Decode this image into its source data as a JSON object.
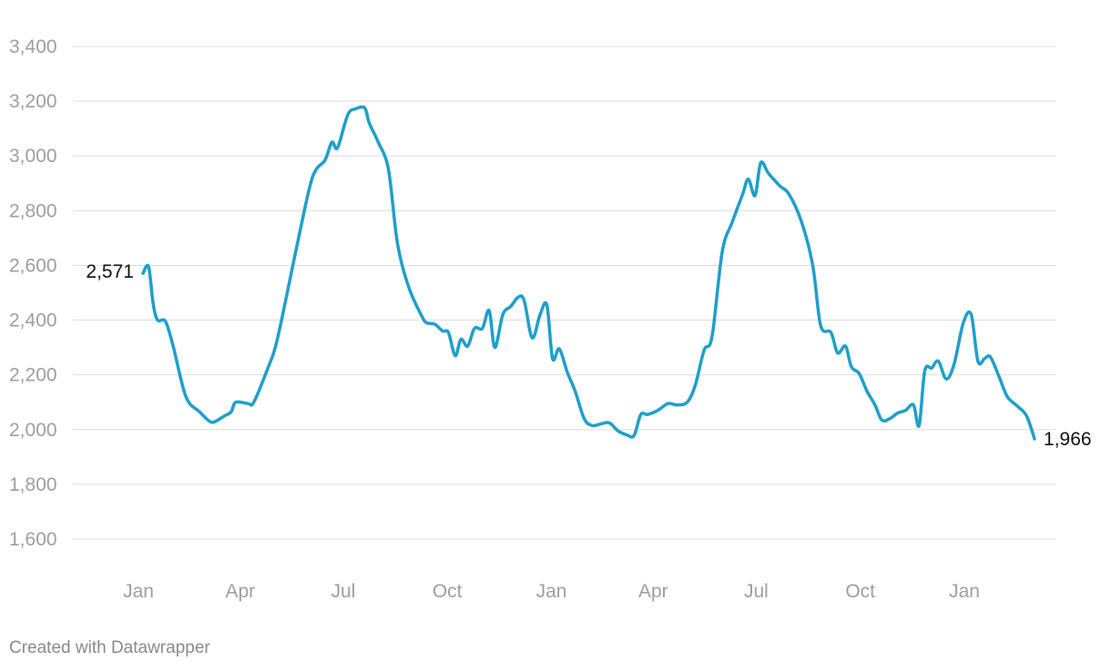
{
  "chart_data": {
    "type": "line",
    "title": "",
    "xlabel": "",
    "ylabel": "",
    "ylim": [
      1600,
      3400
    ],
    "y_ticks": [
      "1,600",
      "1,800",
      "2,000",
      "2,200",
      "2,400",
      "2,600",
      "2,800",
      "3,000",
      "3,200",
      "3,400"
    ],
    "x_ticks": [
      {
        "label": "Jan",
        "date": "2022-01-01"
      },
      {
        "label": "Apr",
        "date": "2022-04-01"
      },
      {
        "label": "Jul",
        "date": "2022-07-01"
      },
      {
        "label": "Oct",
        "date": "2022-10-01"
      },
      {
        "label": "Jan",
        "date": "2023-01-01"
      },
      {
        "label": "Apr",
        "date": "2023-04-01"
      },
      {
        "label": "Jul",
        "date": "2023-07-01"
      },
      {
        "label": "Oct",
        "date": "2023-10-01"
      },
      {
        "label": "Jan",
        "date": "2024-01-01"
      }
    ],
    "grid": true,
    "line_color": "#1f9fcc",
    "series": [
      {
        "points": [
          [
            "2022-01-05",
            2571
          ],
          [
            "2022-01-10",
            2595
          ],
          [
            "2022-01-14",
            2460
          ],
          [
            "2022-01-18",
            2400
          ],
          [
            "2022-01-25",
            2395
          ],
          [
            "2022-02-01",
            2300
          ],
          [
            "2022-02-12",
            2120
          ],
          [
            "2022-02-24",
            2065
          ],
          [
            "2022-03-05",
            2030
          ],
          [
            "2022-03-10",
            2030
          ],
          [
            "2022-03-18",
            2050
          ],
          [
            "2022-03-24",
            2065
          ],
          [
            "2022-03-28",
            2100
          ],
          [
            "2022-04-08",
            2095
          ],
          [
            "2022-04-13",
            2100
          ],
          [
            "2022-04-25",
            2220
          ],
          [
            "2022-05-02",
            2300
          ],
          [
            "2022-05-10",
            2450
          ],
          [
            "2022-05-20",
            2650
          ],
          [
            "2022-06-01",
            2880
          ],
          [
            "2022-06-07",
            2950
          ],
          [
            "2022-06-15",
            2985
          ],
          [
            "2022-06-21",
            3050
          ],
          [
            "2022-06-26",
            3030
          ],
          [
            "2022-07-05",
            3150
          ],
          [
            "2022-07-12",
            3172
          ],
          [
            "2022-07-20",
            3175
          ],
          [
            "2022-07-24",
            3120
          ],
          [
            "2022-08-01",
            3050
          ],
          [
            "2022-08-10",
            2950
          ],
          [
            "2022-08-18",
            2680
          ],
          [
            "2022-08-28",
            2520
          ],
          [
            "2022-09-09",
            2410
          ],
          [
            "2022-09-13",
            2390
          ],
          [
            "2022-09-20",
            2385
          ],
          [
            "2022-09-27",
            2360
          ],
          [
            "2022-10-02",
            2355
          ],
          [
            "2022-10-08",
            2270
          ],
          [
            "2022-10-13",
            2330
          ],
          [
            "2022-10-19",
            2305
          ],
          [
            "2022-10-25",
            2370
          ],
          [
            "2022-11-01",
            2370
          ],
          [
            "2022-11-07",
            2435
          ],
          [
            "2022-11-12",
            2300
          ],
          [
            "2022-11-19",
            2420
          ],
          [
            "2022-11-26",
            2450
          ],
          [
            "2022-12-03",
            2485
          ],
          [
            "2022-12-08",
            2470
          ],
          [
            "2022-12-15",
            2335
          ],
          [
            "2022-12-22",
            2420
          ],
          [
            "2022-12-28",
            2455
          ],
          [
            "2023-01-02",
            2260
          ],
          [
            "2023-01-08",
            2295
          ],
          [
            "2023-01-15",
            2210
          ],
          [
            "2023-01-22",
            2140
          ],
          [
            "2023-01-30",
            2040
          ],
          [
            "2023-02-06",
            2015
          ],
          [
            "2023-02-13",
            2020
          ],
          [
            "2023-02-21",
            2025
          ],
          [
            "2023-03-01",
            1995
          ],
          [
            "2023-03-09",
            1980
          ],
          [
            "2023-03-15",
            1978
          ],
          [
            "2023-03-21",
            2055
          ],
          [
            "2023-03-27",
            2055
          ],
          [
            "2023-04-05",
            2070
          ],
          [
            "2023-04-14",
            2095
          ],
          [
            "2023-04-22",
            2090
          ],
          [
            "2023-05-01",
            2100
          ],
          [
            "2023-05-08",
            2160
          ],
          [
            "2023-05-16",
            2290
          ],
          [
            "2023-05-23",
            2340
          ],
          [
            "2023-06-01",
            2650
          ],
          [
            "2023-06-10",
            2760
          ],
          [
            "2023-06-19",
            2860
          ],
          [
            "2023-06-24",
            2915
          ],
          [
            "2023-06-30",
            2855
          ],
          [
            "2023-07-05",
            2975
          ],
          [
            "2023-07-12",
            2935
          ],
          [
            "2023-07-22",
            2890
          ],
          [
            "2023-07-30",
            2860
          ],
          [
            "2023-08-10",
            2760
          ],
          [
            "2023-08-20",
            2600
          ],
          [
            "2023-08-27",
            2380
          ],
          [
            "2023-09-05",
            2355
          ],
          [
            "2023-09-11",
            2280
          ],
          [
            "2023-09-18",
            2305
          ],
          [
            "2023-09-23",
            2230
          ],
          [
            "2023-09-30",
            2205
          ],
          [
            "2023-10-07",
            2140
          ],
          [
            "2023-10-14",
            2090
          ],
          [
            "2023-10-20",
            2035
          ],
          [
            "2023-10-27",
            2040
          ],
          [
            "2023-11-03",
            2060
          ],
          [
            "2023-11-10",
            2070
          ],
          [
            "2023-11-17",
            2090
          ],
          [
            "2023-11-22",
            2015
          ],
          [
            "2023-11-27",
            2215
          ],
          [
            "2023-12-03",
            2225
          ],
          [
            "2023-12-09",
            2250
          ],
          [
            "2023-12-16",
            2185
          ],
          [
            "2023-12-23",
            2240
          ],
          [
            "2023-12-31",
            2390
          ],
          [
            "2024-01-07",
            2420
          ],
          [
            "2024-01-13",
            2250
          ],
          [
            "2024-01-19",
            2260
          ],
          [
            "2024-01-24",
            2265
          ],
          [
            "2024-02-01",
            2190
          ],
          [
            "2024-02-08",
            2120
          ],
          [
            "2024-02-17",
            2085
          ],
          [
            "2024-02-25",
            2050
          ],
          [
            "2024-03-03",
            1966
          ]
        ]
      }
    ],
    "annotations": {
      "start_label": "2,571",
      "end_label": "1,966"
    }
  },
  "footer": {
    "credit": "Created with Datawrapper"
  }
}
